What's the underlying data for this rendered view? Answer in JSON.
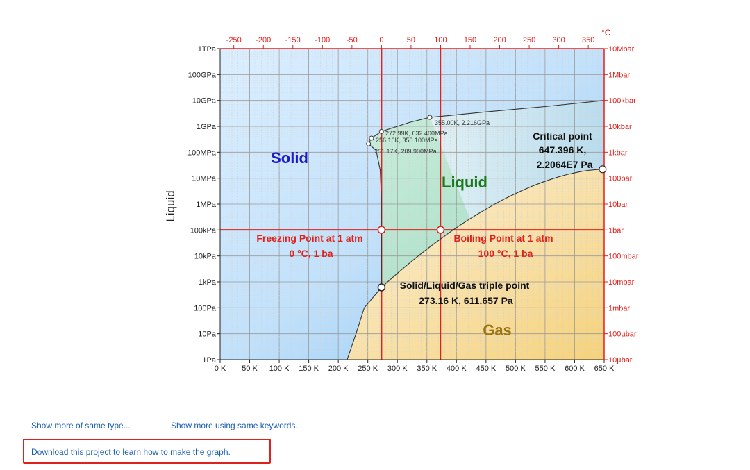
{
  "chart_data": {
    "type": "line",
    "title": "",
    "ylabel": "Liquid",
    "x_axis_bottom": {
      "unit": "K",
      "range": [
        0,
        650
      ],
      "ticks": [
        "0 K",
        "50 K",
        "100 K",
        "150 K",
        "200 K",
        "250 K",
        "300 K",
        "350 K",
        "400 K",
        "450 K",
        "500 K",
        "550 K",
        "600 K",
        "650 K"
      ]
    },
    "x_axis_top": {
      "unit": "°C",
      "ticks": [
        "-250",
        "-200",
        "-150",
        "-100",
        "-50",
        "0",
        "50",
        "100",
        "150",
        "200",
        "250",
        "300",
        "350"
      ]
    },
    "y_axis_left": {
      "scale": "log",
      "ticks": [
        "1Pa",
        "10Pa",
        "100Pa",
        "1kPa",
        "10kPa",
        "100kPa",
        "1MPa",
        "10MPa",
        "100MPa",
        "1GPa",
        "10GPa",
        "100GPa",
        "1TPa"
      ]
    },
    "y_axis_right": {
      "scale": "log",
      "ticks": [
        "10µbar",
        "100µbar",
        "1mbar",
        "10mbar",
        "100mbar",
        "1bar",
        "10bar",
        "100bar",
        "1kbar",
        "10kbar",
        "100kbar",
        "1Mbar",
        "10Mbar"
      ]
    },
    "regions": [
      {
        "label": "Solid",
        "color": "#1a1acc"
      },
      {
        "label": "Liquid",
        "color": "#1a7a1a"
      },
      {
        "label": "Gas",
        "color": "#9b7415"
      }
    ],
    "series": [
      {
        "curve": "vaporization",
        "points": [
          [
            273.16,
            611.657
          ],
          [
            373.15,
            101325
          ],
          [
            647.396,
            22064000
          ]
        ]
      },
      {
        "curve": "sublimation",
        "points": [
          [
            215,
            1
          ],
          [
            273.16,
            611.657
          ]
        ]
      },
      {
        "curve": "melting",
        "points": [
          [
            273.16,
            611.657
          ],
          [
            273.1,
            101325
          ],
          [
            270,
            10000000
          ],
          [
            251.17,
            209900000
          ],
          [
            256.16,
            350100000
          ],
          [
            272.99,
            632400000
          ],
          [
            355,
            2216000000
          ],
          [
            650,
            10000000000
          ]
        ]
      }
    ],
    "point_labels": [
      "355.00K, 2.216GPa",
      "272.99K, 632.400MPa",
      "256.16K, 350.100MPa",
      "251.17K, 209.900MPa"
    ],
    "annotations": {
      "critical": [
        "Critical point",
        "647.396 K,",
        "2.2064E7 Pa"
      ],
      "freezing": [
        "Freezing Point at 1 atm",
        "0 °C, 1 ba"
      ],
      "boiling": [
        "Boiling Point at 1 atm",
        "100 °C, 1 ba"
      ],
      "triple": [
        "Solid/Liquid/Gas triple point",
        "273.16 K, 611.657 Pa"
      ]
    },
    "grid": true
  },
  "links": {
    "more_type": "Show more of same type...",
    "more_keywords": "Show more using same keywords...",
    "download": "Download this project to learn how to make the graph."
  },
  "colors": {
    "accent_red": "#e0201b",
    "link": "#1a5fb4"
  }
}
